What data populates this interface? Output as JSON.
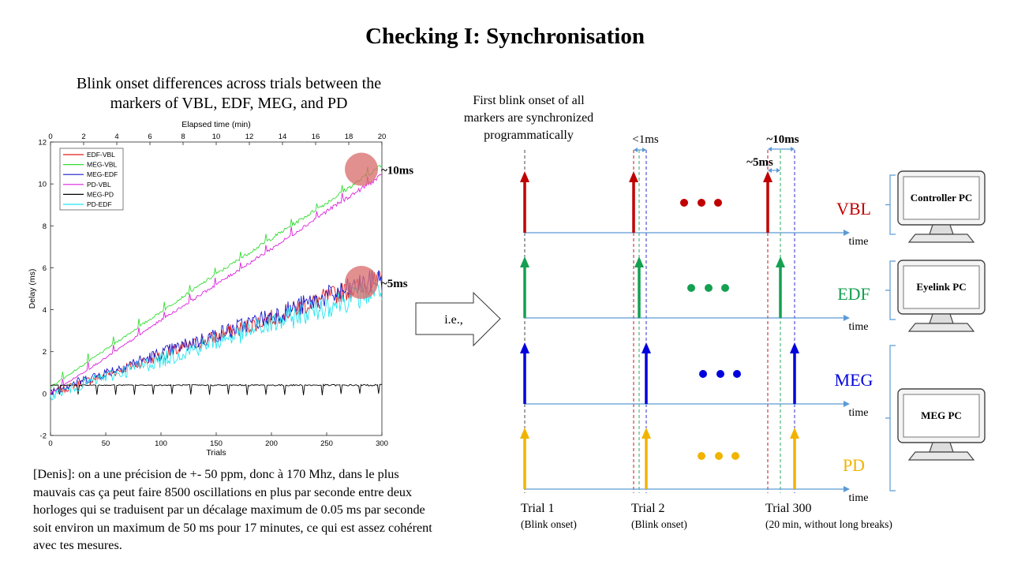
{
  "slide": {
    "title": "Checking I: Synchronisation",
    "plot_heading_line1": "Blink onset differences across trials between the",
    "plot_heading_line2": "markers of VBL, EDF, MEG, and PD",
    "note": "[Denis]: on a une précision de +- 50 ppm, donc à 170 Mhz, dans le plus mauvais cas ça peut faire 8500 oscillations en plus par seconde entre deux horloges qui se traduisent par un décalage maximum de 0.05 ms par seconde soit environ un maximum de 50 ms pour 17 minutes, ce qui est assez cohérent avec tes mesures."
  },
  "chart_data": {
    "type": "line",
    "title": "",
    "xlabel": "Trials",
    "ylabel": "Delay (ms)",
    "top_xlabel": "Elapsed time (min)",
    "xlim": [
      0,
      300
    ],
    "ylim": [
      -2,
      12
    ],
    "top_xlim": [
      0,
      20
    ],
    "xticks": [
      0,
      50,
      100,
      150,
      200,
      250,
      300
    ],
    "yticks": [
      -2,
      0,
      2,
      4,
      6,
      8,
      10,
      12
    ],
    "top_xticks": [
      0,
      2,
      4,
      6,
      8,
      10,
      12,
      14,
      16,
      18,
      20
    ],
    "legend_position": "top-left",
    "grid": false,
    "series": [
      {
        "name": "EDF-VBL",
        "color": "#e41a1c",
        "x": [
          0,
          50,
          100,
          150,
          200,
          250,
          300
        ],
        "y": [
          0.0,
          0.9,
          1.8,
          2.7,
          3.6,
          4.6,
          5.4
        ]
      },
      {
        "name": "MEG-VBL",
        "color": "#33dd33",
        "x": [
          0,
          50,
          100,
          150,
          200,
          250,
          300
        ],
        "y": [
          0.3,
          2.1,
          3.9,
          5.7,
          7.4,
          9.1,
          10.9
        ]
      },
      {
        "name": "MEG-EDF",
        "color": "#1a1acc",
        "x": [
          0,
          50,
          100,
          150,
          200,
          250,
          300
        ],
        "y": [
          0.1,
          1.0,
          1.9,
          2.8,
          3.7,
          4.6,
          5.5
        ]
      },
      {
        "name": "PD-VBL",
        "color": "#dd22dd",
        "x": [
          0,
          50,
          100,
          150,
          200,
          250,
          300
        ],
        "y": [
          0.0,
          1.7,
          3.5,
          5.2,
          6.9,
          8.7,
          10.4
        ]
      },
      {
        "name": "MEG-PD",
        "color": "#000000",
        "x": [
          0,
          50,
          100,
          150,
          200,
          250,
          300
        ],
        "y": [
          0.4,
          0.4,
          0.4,
          0.4,
          0.4,
          0.4,
          0.4
        ]
      },
      {
        "name": "PD-EDF",
        "color": "#22e6f0",
        "x": [
          0,
          50,
          100,
          150,
          200,
          250,
          300
        ],
        "y": [
          -0.1,
          0.8,
          1.6,
          2.5,
          3.3,
          4.2,
          5.0
        ]
      }
    ],
    "annotations": [
      {
        "text": "~10ms",
        "x": 290,
        "y": 10.7
      },
      {
        "text": "~5ms",
        "x": 290,
        "y": 5.3
      }
    ]
  },
  "diagram": {
    "sync_note_line1": "First blink onset of all",
    "sync_note_line2": "markers are synchronized",
    "sync_note_line3": "programmatically",
    "arrow_label": "i.e.,",
    "lt1ms": "<1ms",
    "approx10ms": "~10ms",
    "approx5ms": "~5ms",
    "time_label": "time",
    "rows": [
      {
        "name": "VBL",
        "color": "#c00000",
        "pc": "Controller PC"
      },
      {
        "name": "EDF",
        "color": "#14a050",
        "pc": "Eyelink PC"
      },
      {
        "name": "MEG",
        "color": "#0000dd",
        "pc": "MEG PC"
      },
      {
        "name": "PD",
        "color": "#f0b400",
        "pc": ""
      }
    ],
    "trials": [
      {
        "label": "Trial 1",
        "sub": "(Blink onset)"
      },
      {
        "label": "Trial 2",
        "sub": "(Blink onset)"
      },
      {
        "label": "Trial 300",
        "sub": "(20 min, without long breaks)"
      }
    ]
  }
}
